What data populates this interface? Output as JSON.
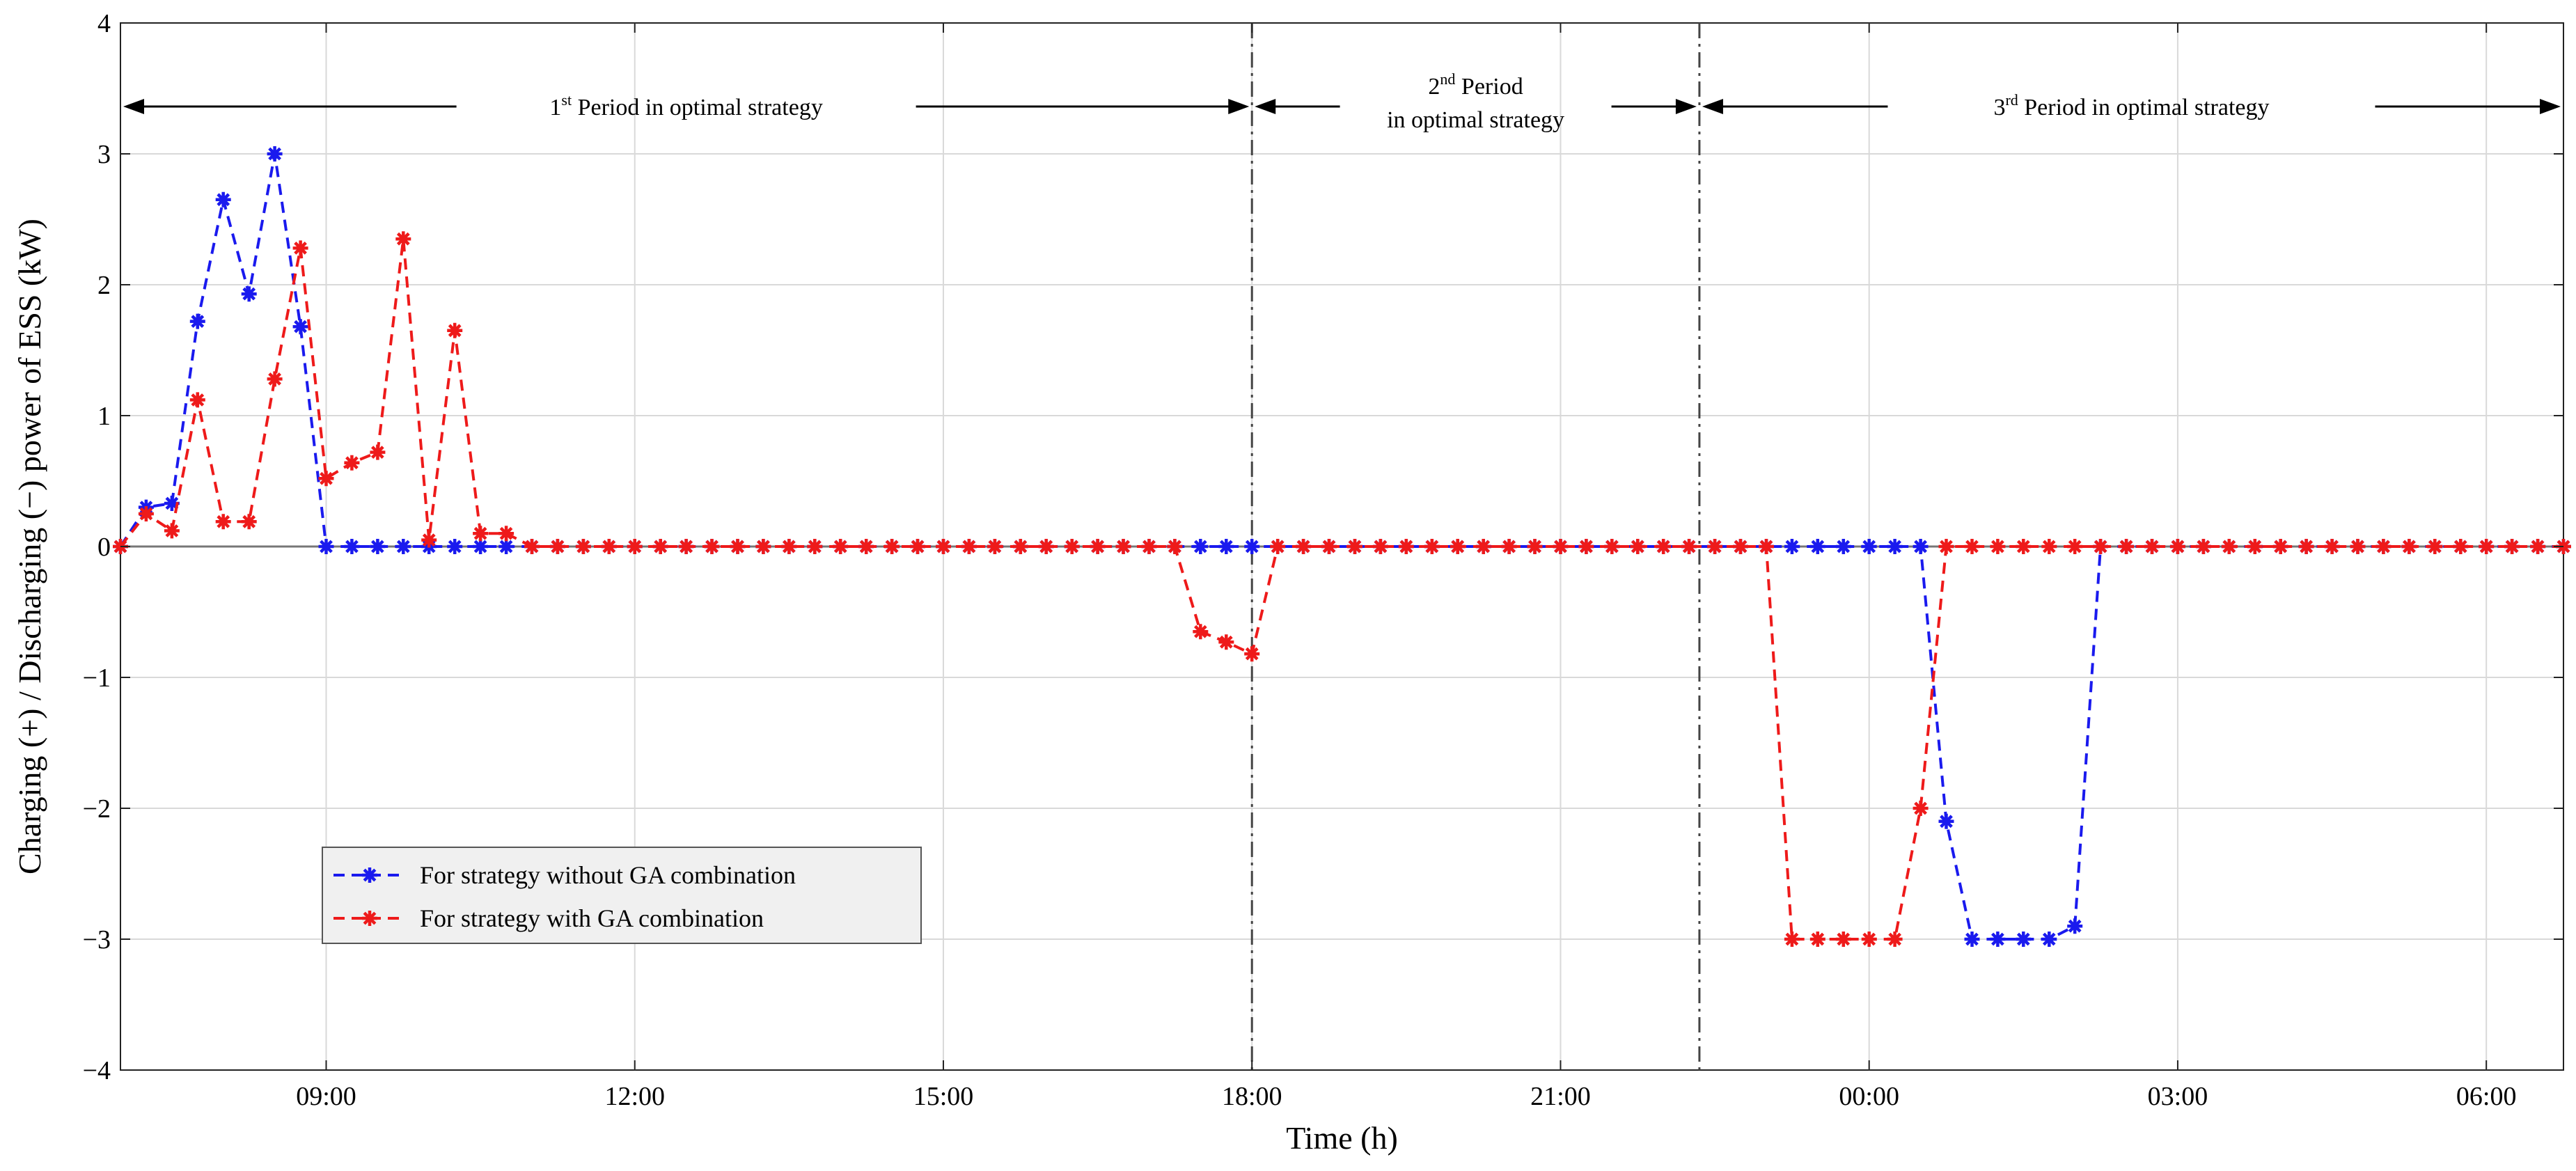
{
  "chart_data": {
    "type": "line",
    "xlabel": "Time (h)",
    "ylabel": "Charging (+) / Discharging (−) power of ESS (kW)",
    "x_start_hour": 7.0,
    "x_step_hours": 0.25,
    "x_range_hours": [
      7.0,
      30.75
    ],
    "ylim": [
      -4,
      4
    ],
    "yticks": [
      -4,
      -3,
      -2,
      -1,
      0,
      1,
      2,
      3,
      4
    ],
    "ytick_labels": [
      "−4",
      "−3",
      "−2",
      "−1",
      "0",
      "1",
      "2",
      "3",
      "4"
    ],
    "xticks_hours": [
      9,
      12,
      15,
      18,
      21,
      24,
      27,
      30
    ],
    "xtick_labels": [
      "09:00",
      "12:00",
      "15:00",
      "18:00",
      "21:00",
      "00:00",
      "03:00",
      "06:00"
    ],
    "grid": true,
    "legend_position": "lower-left",
    "series": [
      {
        "name": "For strategy without GA combination",
        "color": "#1a1aee",
        "values": [
          0,
          0.3,
          0.33,
          1.72,
          2.65,
          1.93,
          3.0,
          1.68,
          0,
          0,
          0,
          0,
          0,
          0,
          0,
          0,
          0,
          0,
          0,
          0,
          0,
          0,
          0,
          0,
          0,
          0,
          0,
          0,
          0,
          0,
          0,
          0,
          0,
          0,
          0,
          0,
          0,
          0,
          0,
          0,
          0,
          0,
          0,
          0,
          0,
          0,
          0,
          0,
          0,
          0,
          0,
          0,
          0,
          0,
          0,
          0,
          0,
          0,
          0,
          0,
          0,
          0,
          0,
          0,
          0,
          0,
          0,
          0,
          0,
          0,
          0,
          -2.1,
          -3.0,
          -3.0,
          -3.0,
          -3.0,
          -2.9,
          0,
          0,
          0,
          0,
          0,
          0,
          0,
          0,
          0,
          0,
          0,
          0,
          0,
          0,
          0,
          0,
          0,
          0,
          0
        ]
      },
      {
        "name": "For strategy with GA combination",
        "color": "#ee1a1a",
        "values": [
          0,
          0.25,
          0.12,
          1.12,
          0.19,
          0.19,
          1.28,
          2.28,
          0.52,
          0.64,
          0.72,
          2.35,
          0.05,
          1.65,
          0.1,
          0.1,
          0,
          0,
          0,
          0,
          0,
          0,
          0,
          0,
          0,
          0,
          0,
          0,
          0,
          0,
          0,
          0,
          0,
          0,
          0,
          0,
          0,
          0,
          0,
          0,
          0,
          0,
          -0.65,
          -0.73,
          -0.82,
          0,
          0,
          0,
          0,
          0,
          0,
          0,
          0,
          0,
          0,
          0,
          0,
          0,
          0,
          0,
          0,
          0,
          0,
          0,
          0,
          -3.0,
          -3.0,
          -3.0,
          -3.0,
          -3.0,
          -2.0,
          0,
          0,
          0,
          0,
          0,
          0,
          0,
          0,
          0,
          0,
          0,
          0,
          0,
          0,
          0,
          0,
          0,
          0,
          0,
          0,
          0,
          0,
          0,
          0,
          0
        ]
      }
    ],
    "period_dividers_hours": [
      18.0,
      22.35
    ],
    "periods": [
      {
        "lines": [
          {
            "n": "1",
            "sup": "st",
            "rest": " Period in optimal strategy"
          }
        ],
        "start_hour": 7.0,
        "end_hour": 18.0
      },
      {
        "lines": [
          {
            "n": "2",
            "sup": "nd",
            "rest": " Period"
          },
          {
            "n": "",
            "sup": "",
            "rest": "in optimal strategy"
          }
        ],
        "start_hour": 18.0,
        "end_hour": 22.35
      },
      {
        "lines": [
          {
            "n": "3",
            "sup": "rd",
            "rest": " Period in optimal strategy"
          }
        ],
        "start_hour": 22.35,
        "end_hour": 30.75
      }
    ]
  }
}
